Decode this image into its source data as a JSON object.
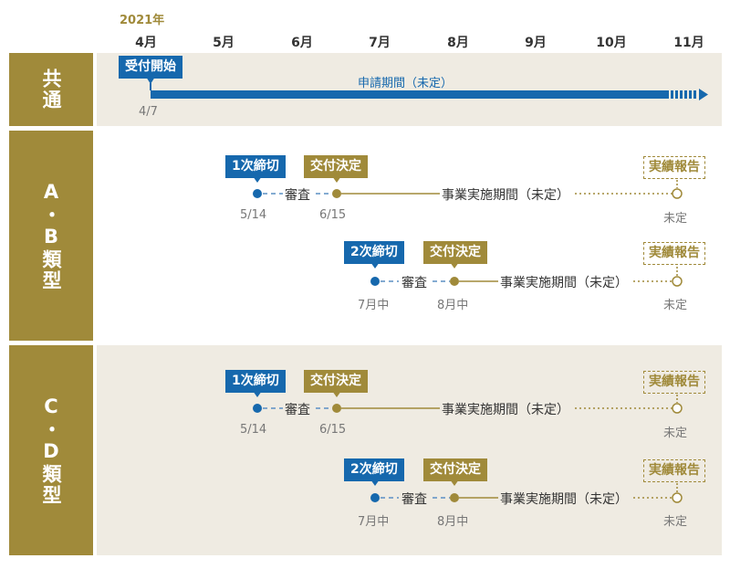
{
  "header": {
    "year": "2021年",
    "months": [
      "4月",
      "5月",
      "6月",
      "7月",
      "8月",
      "9月",
      "10月",
      "11月"
    ]
  },
  "common": {
    "category": "共通",
    "start_tag": "受付開始",
    "start_date": "4/7",
    "period_label": "申請期間（未定）"
  },
  "ab": {
    "category": "A・B類型",
    "round1": {
      "deadline_tag": "1次締切",
      "deadline_date": "5/14",
      "review": "審査",
      "decision_tag": "交付決定",
      "decision_date": "6/15",
      "period": "事業実施期間（未定）",
      "report_tag": "実績報告",
      "report_date": "未定"
    },
    "round2": {
      "deadline_tag": "2次締切",
      "deadline_date": "7月中",
      "review": "審査",
      "decision_tag": "交付決定",
      "decision_date": "8月中",
      "period": "事業実施期間（未定）",
      "report_tag": "実績報告",
      "report_date": "未定"
    }
  },
  "cd": {
    "category": "C・D類型",
    "round1": {
      "deadline_tag": "1次締切",
      "deadline_date": "5/14",
      "review": "審査",
      "decision_tag": "交付決定",
      "decision_date": "6/15",
      "period": "事業実施期間（未定）",
      "report_tag": "実績報告",
      "report_date": "未定"
    },
    "round2": {
      "deadline_tag": "2次締切",
      "deadline_date": "7月中",
      "review": "審査",
      "decision_tag": "交付決定",
      "decision_date": "8月中",
      "period": "事業実施期間（未定）",
      "report_tag": "実績報告",
      "report_date": "未定"
    }
  },
  "colors": {
    "gold": "#a08a3a",
    "blue": "#1668ad",
    "beige": "#efebe2"
  }
}
